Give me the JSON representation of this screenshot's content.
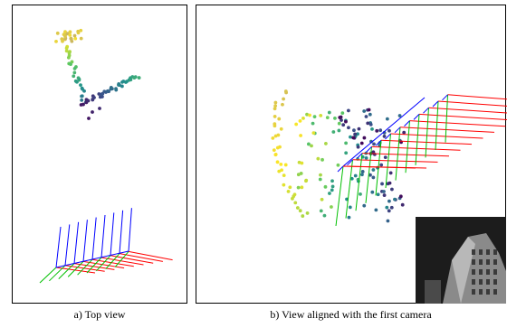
{
  "captions": {
    "a": "a) Top view",
    "b": "b) View aligned with the first camera"
  },
  "colors": {
    "axis_x": "#ff0000",
    "axis_y": "#00c000",
    "axis_z": "#0000ff",
    "point_ramp": [
      "#440154",
      "#3b528b",
      "#21918c",
      "#5ec962",
      "#fde725",
      "#c8b464"
    ]
  },
  "icons": {
    "camera_frame_glyph": "camera-axes-icon",
    "inset_photo": "building-photo-icon"
  }
}
